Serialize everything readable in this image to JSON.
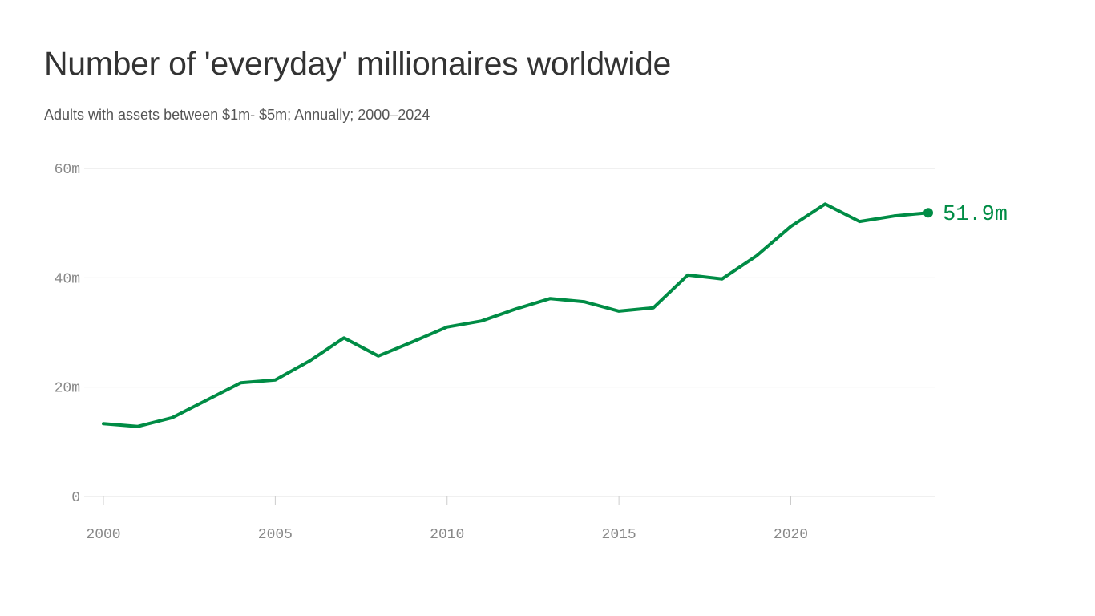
{
  "title": "Number of 'everyday' millionaires worldwide",
  "subtitle": "Adults with assets between $1m- $5m; Annually; 2000–2024",
  "colors": {
    "line": "#008c45",
    "grid": "#e0e0e0",
    "tick_text": "#888888",
    "title": "#333333"
  },
  "chart_data": {
    "type": "line",
    "title": "Number of 'everyday' millionaires worldwide",
    "subtitle": "Adults with assets between $1m- $5m; Annually; 2000–2024",
    "xlabel": "",
    "ylabel": "",
    "x": [
      2000,
      2001,
      2002,
      2003,
      2004,
      2005,
      2006,
      2007,
      2008,
      2009,
      2010,
      2011,
      2012,
      2013,
      2014,
      2015,
      2016,
      2017,
      2018,
      2019,
      2020,
      2021,
      2022,
      2023,
      2024
    ],
    "series": [
      {
        "values": [
          13.3,
          12.8,
          14.4,
          17.6,
          20.8,
          21.3,
          24.8,
          29.0,
          25.7,
          28.3,
          31.0,
          32.1,
          34.3,
          36.2,
          35.6,
          33.9,
          34.5,
          40.5,
          39.8,
          44.0,
          49.4,
          53.5,
          50.3,
          51.3,
          51.9
        ]
      }
    ],
    "xlim": [
      2000,
      2024
    ],
    "ylim": [
      0,
      60
    ],
    "y_ticks": [
      0,
      20,
      40,
      60
    ],
    "y_tick_labels": [
      "0",
      "20m",
      "40m",
      "60m"
    ],
    "x_ticks": [
      2000,
      2005,
      2010,
      2015,
      2020
    ],
    "x_tick_labels": [
      "2000",
      "2005",
      "2010",
      "2015",
      "2020"
    ],
    "grid": "horizontal",
    "end_label": "51.9m"
  }
}
